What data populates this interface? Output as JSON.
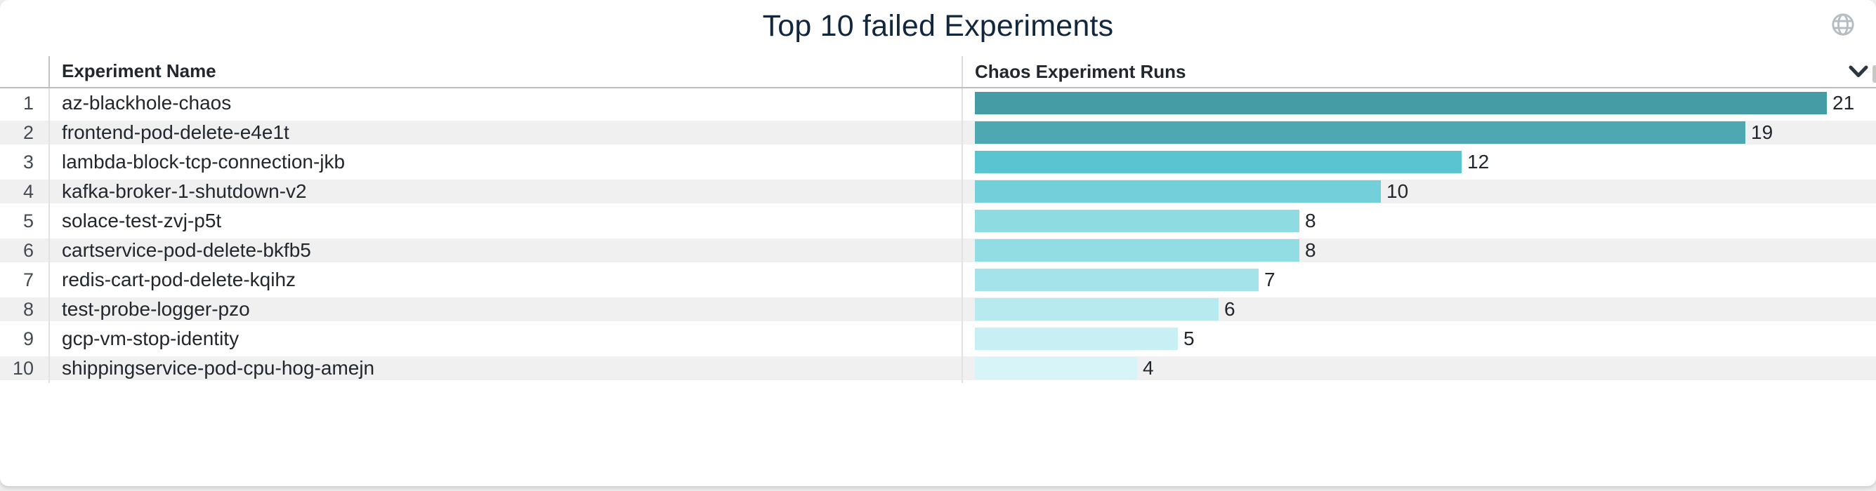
{
  "panel": {
    "title": "Top 10 failed Experiments"
  },
  "table": {
    "columns": [
      {
        "label": "Experiment Name"
      },
      {
        "label": "Chaos Experiment Runs"
      }
    ]
  },
  "chart_data": {
    "type": "bar",
    "orientation": "horizontal",
    "title": "Top 10 failed Experiments",
    "ranks": [
      1,
      2,
      3,
      4,
      5,
      6,
      7,
      8,
      9,
      10
    ],
    "categories": [
      "az-blackhole-chaos",
      "frontend-pod-delete-e4e1t",
      "lambda-block-tcp-connection-jkb",
      "kafka-broker-1-shutdown-v2",
      "solace-test-zvj-p5t",
      "cartservice-pod-delete-bkfb5",
      "redis-cart-pod-delete-kqihz",
      "test-probe-logger-pzo",
      "gcp-vm-stop-identity",
      "shippingservice-pod-cpu-hog-amejn"
    ],
    "values": [
      21,
      19,
      12,
      10,
      8,
      8,
      7,
      6,
      5,
      4
    ],
    "value_labels_shown": true,
    "xlim": [
      0,
      21
    ],
    "legend": "none",
    "grid": "off",
    "bar_colors": [
      "#469ca5",
      "#4ea8b1",
      "#5ac4d0",
      "#73cfd9",
      "#8edbe2",
      "#92dce3",
      "#a4e3e9",
      "#b7eaee",
      "#c8f0f4",
      "#d7f5f8"
    ]
  },
  "icons": {
    "globe": "globe-icon",
    "header_menu": "chevron-down-icon"
  },
  "colors": {
    "title_text": "#12263c",
    "header_text": "#22272d",
    "row_text": "#22272d",
    "rank_text": "#444a51",
    "alt_row_bg": "#f0f0f1",
    "page_bg": "#ececec",
    "card_bg": "#ffffff",
    "divider": "#e2e2e2",
    "header_border": "#b9bdc2",
    "globe_icon": "#b5bcc3",
    "chevron_icon": "#2c3742"
  }
}
